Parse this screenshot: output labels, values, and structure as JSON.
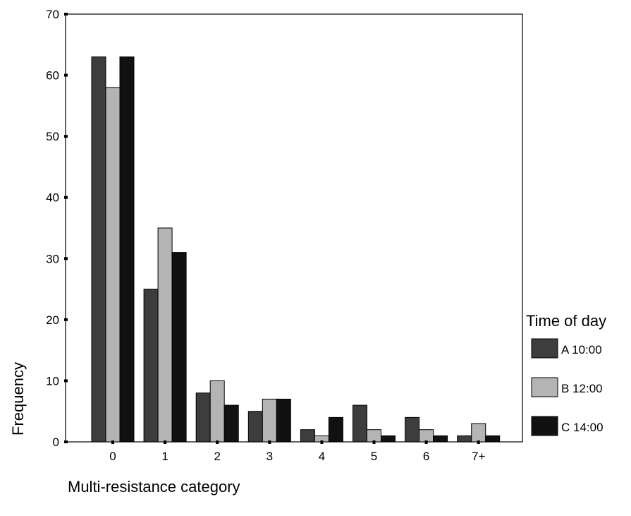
{
  "chart_data": {
    "type": "bar",
    "xlabel": "Multi-resistance category",
    "ylabel": "Frequency",
    "legend_title": "Time of day",
    "legend_position": "right",
    "categories": [
      "0",
      "1",
      "2",
      "3",
      "4",
      "5",
      "6",
      "7+"
    ],
    "ylim": [
      0,
      70
    ],
    "yticks": [
      0,
      10,
      20,
      30,
      40,
      50,
      60,
      70
    ],
    "grid": false,
    "series": [
      {
        "name": "A 10:00",
        "color": "#3d3d3d",
        "values": [
          63,
          25,
          8,
          5,
          2,
          6,
          4,
          1
        ]
      },
      {
        "name": "B 12:00",
        "color": "#b4b4b4",
        "values": [
          58,
          35,
          10,
          7,
          1,
          2,
          2,
          3
        ]
      },
      {
        "name": "C 14:00",
        "color": "#111111",
        "values": [
          63,
          31,
          6,
          7,
          4,
          1,
          1,
          1
        ]
      }
    ]
  }
}
